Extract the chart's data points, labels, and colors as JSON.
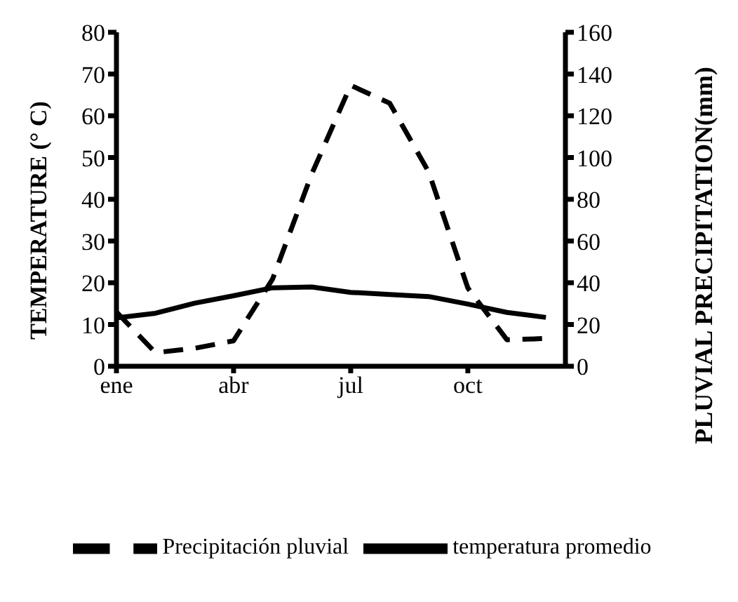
{
  "chart_data": {
    "type": "line",
    "categories": [
      "ene",
      null,
      null,
      "abr",
      null,
      null,
      "jul",
      null,
      null,
      "oct",
      null,
      null
    ],
    "ylabel": "TEMPERATURE (° C)",
    "y2label": "PLUVIAL PRECIPITATION(mm)",
    "ylim": [
      0,
      80
    ],
    "yticks": [
      0,
      10,
      20,
      30,
      40,
      50,
      60,
      70,
      80
    ],
    "y2lim": [
      0,
      160
    ],
    "y2ticks": [
      0,
      20,
      40,
      60,
      80,
      100,
      120,
      140,
      160
    ],
    "grid": false,
    "legend": "bottom",
    "marker": "none",
    "series": [
      {
        "name": "temperatura promedio",
        "color": "#000000",
        "line_style": "solid",
        "values": [
          11.6,
          12.7,
          15.1,
          16.9,
          18.8,
          19.0,
          17.7,
          17.2,
          16.7,
          14.9,
          12.9,
          11.7
        ]
      },
      {
        "name": "Precipitación pluvial",
        "color": "#000000",
        "line_style": "dashed",
        "axis": "y2",
        "values": [
          26,
          6.5,
          8.6,
          12.2,
          41.8,
          92,
          134.6,
          126,
          93,
          37.5,
          12.7,
          13.3
        ]
      }
    ]
  }
}
